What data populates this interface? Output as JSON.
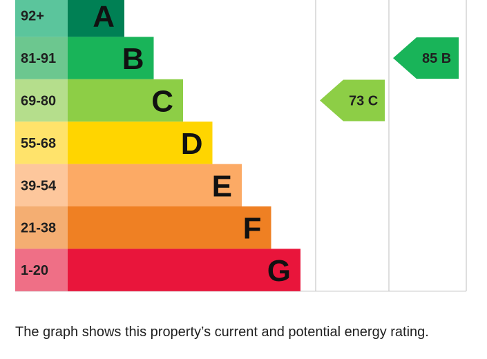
{
  "chart_data": {
    "type": "bar",
    "bands": [
      {
        "range": "92+",
        "letter": "A",
        "color": "#008054",
        "range_color": "#5bc59c"
      },
      {
        "range": "81-91",
        "letter": "B",
        "color": "#19b459",
        "range_color": "#6cc78f"
      },
      {
        "range": "69-80",
        "letter": "C",
        "color": "#8dce46",
        "range_color": "#b5de8c"
      },
      {
        "range": "55-68",
        "letter": "D",
        "color": "#ffd500",
        "range_color": "#ffe36b"
      },
      {
        "range": "39-54",
        "letter": "E",
        "color": "#fcaa65",
        "range_color": "#fdc79c"
      },
      {
        "range": "21-38",
        "letter": "F",
        "color": "#ef8023",
        "range_color": "#f4ae72"
      },
      {
        "range": "1-20",
        "letter": "G",
        "color": "#e9153b",
        "range_color": "#ef6f86"
      }
    ],
    "current": {
      "value": 73,
      "letter": "C",
      "label": "73 C",
      "color": "#8dce46"
    },
    "potential": {
      "value": 85,
      "letter": "B",
      "label": "85 B",
      "color": "#19b459"
    }
  },
  "caption": "The graph shows this property’s current and potential energy rating."
}
